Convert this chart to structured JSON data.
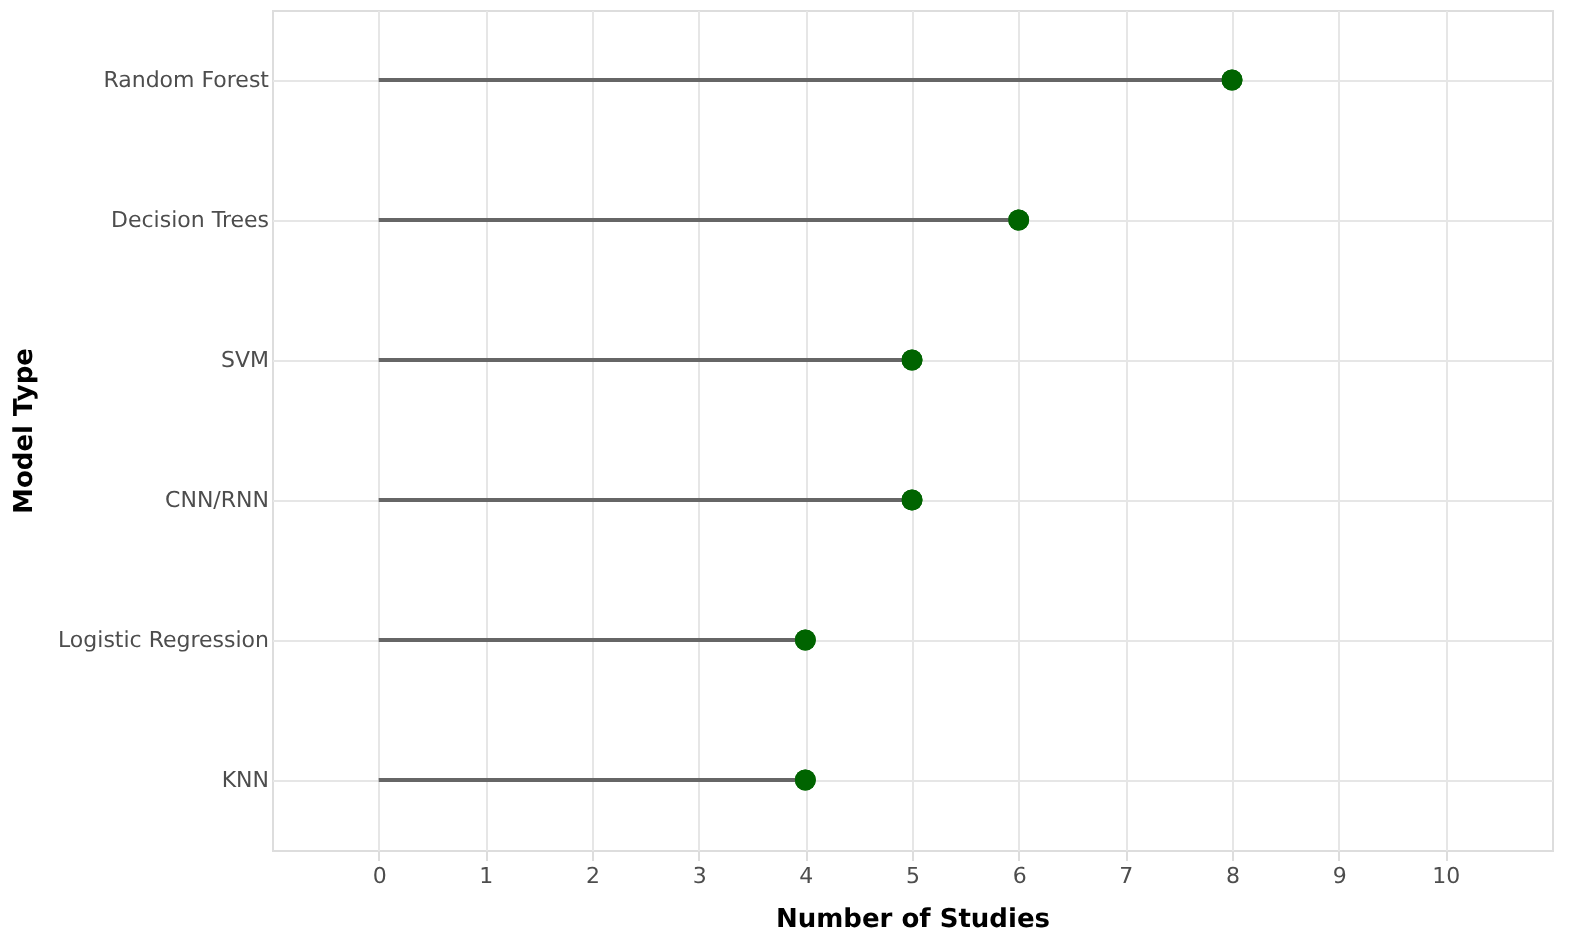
{
  "chart_data": {
    "type": "lollipop",
    "orientation": "horizontal",
    "xlabel": "Number of Studies",
    "ylabel": "Model Type",
    "categories": [
      "Random Forest",
      "Decision Trees",
      "SVM",
      "CNN/RNN",
      "Logistic Regression",
      "KNN"
    ],
    "values": [
      8,
      6,
      5,
      5,
      4,
      4
    ],
    "color": "#006400",
    "xlim": [
      -1,
      11
    ],
    "xticks": [
      0,
      1,
      2,
      3,
      4,
      5,
      6,
      7,
      8,
      9,
      10
    ],
    "grid": true,
    "marker": "circle"
  }
}
